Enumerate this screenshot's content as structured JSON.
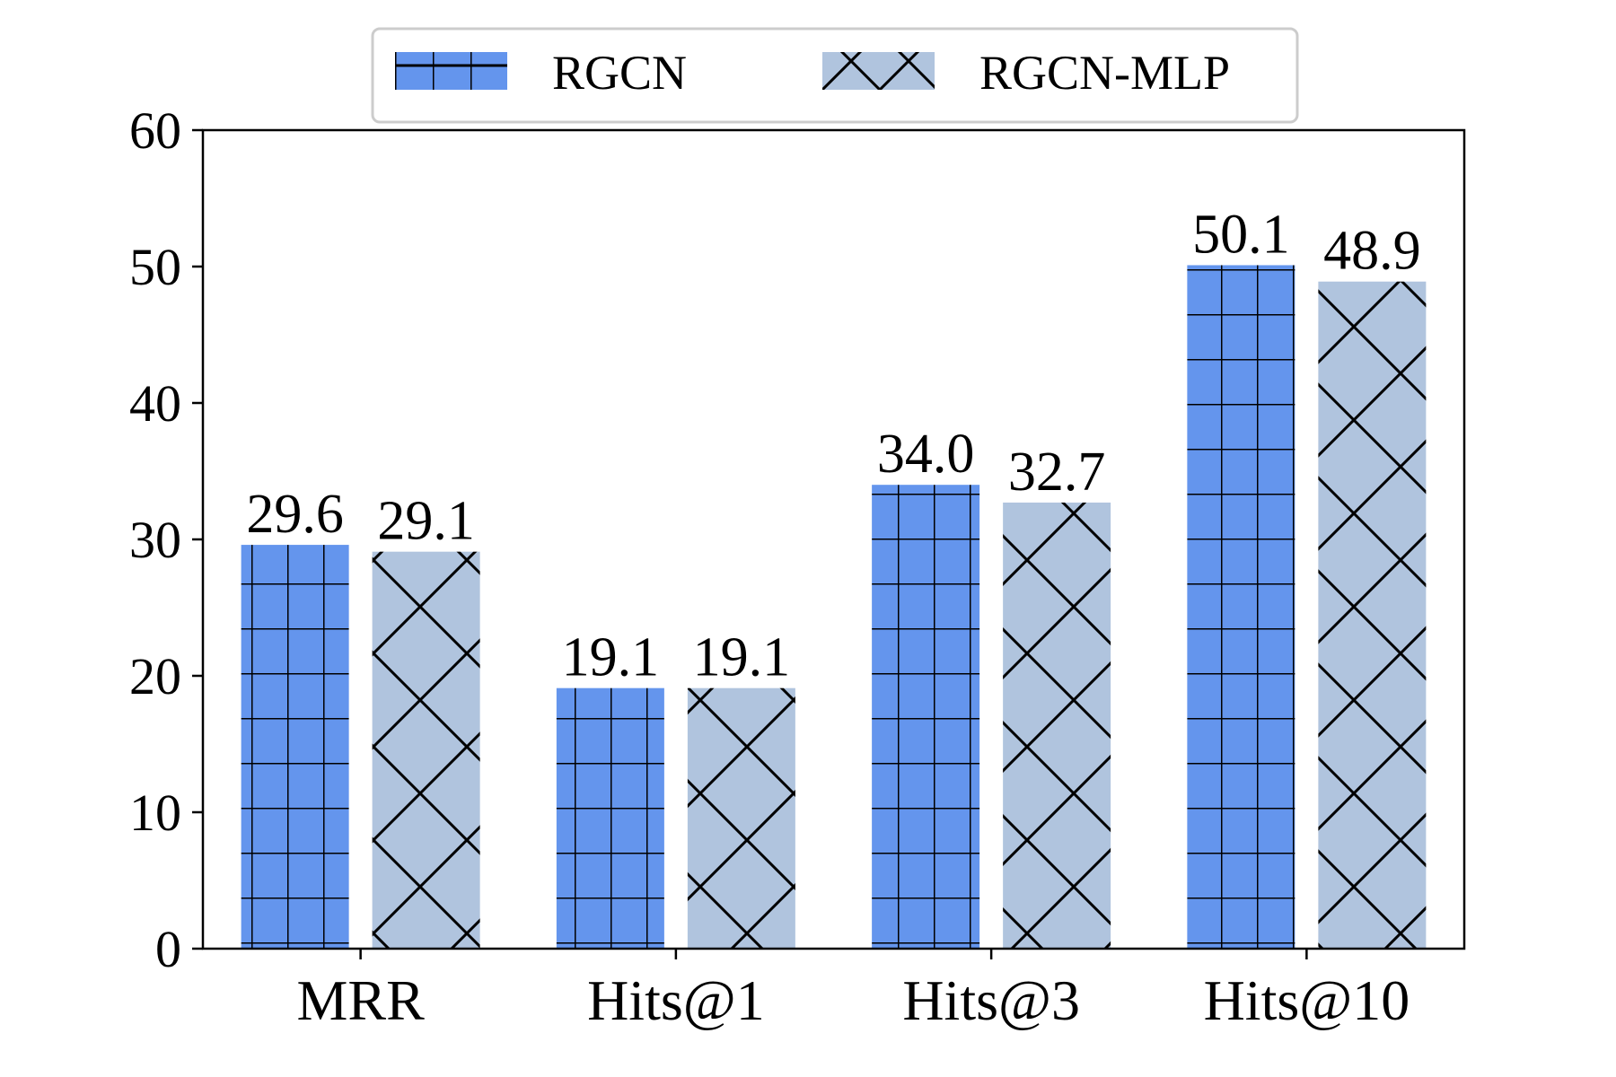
{
  "chart_data": {
    "type": "bar",
    "categories": [
      "MRR",
      "Hits@1",
      "Hits@3",
      "Hits@10"
    ],
    "series": [
      {
        "name": "RGCN",
        "values": [
          29.6,
          19.1,
          34.0,
          50.1
        ],
        "color": "#6495ED",
        "hatch": "grid"
      },
      {
        "name": "RGCN-MLP",
        "values": [
          29.1,
          19.1,
          32.7,
          48.9
        ],
        "color": "#B0C4DE",
        "hatch": "cross"
      }
    ],
    "value_labels": [
      [
        "29.6",
        "19.1",
        "34.0",
        "50.1"
      ],
      [
        "29.1",
        "19.1",
        "32.7",
        "48.9"
      ]
    ],
    "yticks": [
      "0",
      "10",
      "20",
      "30",
      "40",
      "50",
      "60"
    ],
    "ylim": [
      0,
      60
    ],
    "title": "",
    "xlabel": "",
    "ylabel": "",
    "grid": false,
    "legend_position": "top-center, outside plot"
  }
}
